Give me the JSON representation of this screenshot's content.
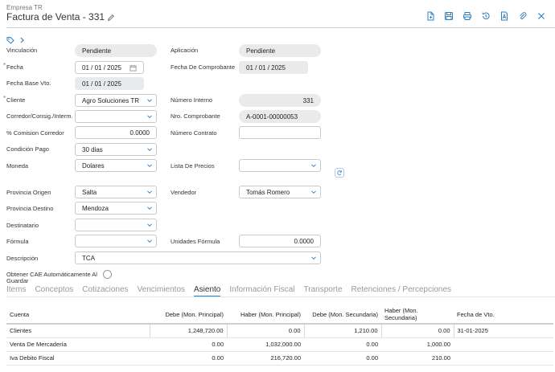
{
  "header": {
    "company": "Empresa TR",
    "title": "Factura de Venta - 331"
  },
  "toolbar": {
    "icons": [
      "new-document-icon",
      "save-icon",
      "print-icon",
      "history-icon",
      "pdf-icon",
      "attachment-icon",
      "close-icon"
    ]
  },
  "form": {
    "vinculacion_label": "Vinculación",
    "vinculacion_value": "Pendiente",
    "aplicacion_label": "Aplicación",
    "aplicacion_value": "Pendiente",
    "fecha_label": "Fecha",
    "fecha_value": "01 / 01 / 2025",
    "fecha_comprobante_label": "Fecha De Comprobante",
    "fecha_comprobante_value": "01 / 01 / 2025",
    "fecha_base_label": "Fecha Base Vto.",
    "fecha_base_value": "01 / 01 / 2025",
    "cliente_label": "Cliente",
    "cliente_value": "Agro Soluciones TR",
    "numero_interno_label": "Número Interno",
    "numero_interno_value": "331",
    "corredor_label": "Corredor/Consig./Interm.",
    "corredor_value": "",
    "nro_comprobante_label": "Nro. Comprobante",
    "nro_comprobante_value": "A-0001-00000053",
    "comision_label": "% Comision Corredor",
    "comision_value": "0.0000",
    "numero_contrato_label": "Número Contrato",
    "numero_contrato_value": "",
    "condicion_pago_label": "Condición Pago",
    "condicion_pago_value": "30 dias",
    "moneda_label": "Moneda",
    "moneda_value": "Dolares",
    "lista_precios_label": "Lista De Precios",
    "lista_precios_value": "",
    "provincia_origen_label": "Provincia Origen",
    "provincia_origen_value": "Salta",
    "vendedor_label": "Vendedor",
    "vendedor_value": "Tomás Romero",
    "provincia_destino_label": "Provincia Destino",
    "provincia_destino_value": "Mendoza",
    "destinatario_label": "Destinatario",
    "destinatario_value": "",
    "formula_label": "Fórmula",
    "formula_value": "",
    "unidades_formula_label": "Unidades Fórmula",
    "unidades_formula_value": "0.0000",
    "descripcion_label": "Descripción",
    "descripcion_value": "TCA",
    "cae_label_line1": "Obtener CAE Automáticamente Al",
    "cae_label_line2": "Guardar"
  },
  "tabs": [
    {
      "label": "Items",
      "active": false
    },
    {
      "label": "Conceptos",
      "active": false
    },
    {
      "label": "Cotizaciones",
      "active": false
    },
    {
      "label": "Vencimientos",
      "active": false
    },
    {
      "label": "Asiento",
      "active": true
    },
    {
      "label": "Información Fiscal",
      "active": false
    },
    {
      "label": "Transporte",
      "active": false
    },
    {
      "label": "Retenciones / Percepciones",
      "active": false
    }
  ],
  "table": {
    "headers": [
      "Cuenta",
      "Debe (Mon. Principal)",
      "Haber (Mon. Principal)",
      "Debe (Mon. Secundaria)",
      "Haber (Mon. Secundaria)",
      "Fecha de Vto."
    ],
    "rows": [
      [
        "Clientes",
        "1,248,720.00",
        "0.00",
        "1,210.00",
        "0.00",
        "31-01-2025"
      ],
      [
        "Venta De Mercadería",
        "0.00",
        "1,032,000.00",
        "0.00",
        "1,000.00",
        ""
      ],
      [
        "Iva Debito Fiscal",
        "0.00",
        "216,720.00",
        "0.00",
        "210.00",
        ""
      ]
    ]
  },
  "colors": {
    "accent": "#1e88c8",
    "icon_blue": "#2f7fc1",
    "required": "#d9534f",
    "readonly_bg": "#e9eaec"
  }
}
